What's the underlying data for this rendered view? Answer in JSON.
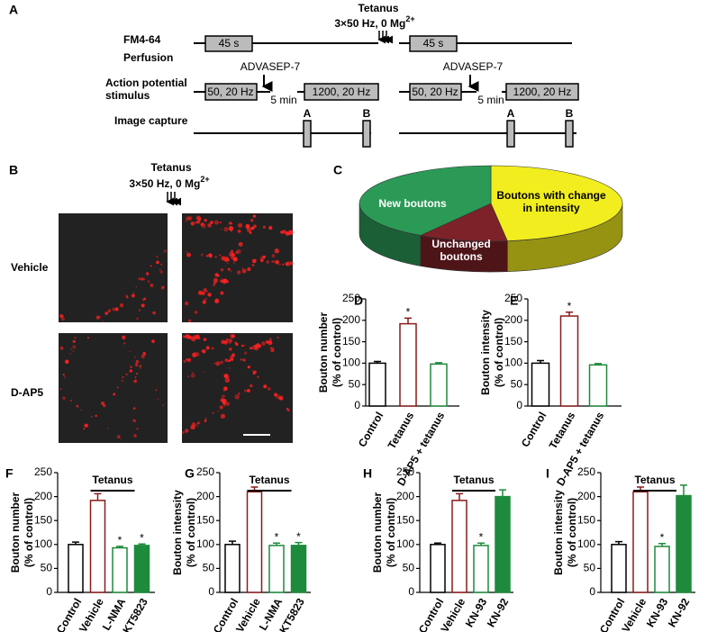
{
  "figure": {
    "panel_a": {
      "label": "A",
      "tetanus": "Tetanus",
      "tetanus_params": "3×50 Hz, 0 Mg",
      "tetanus_superscript": "2+",
      "row_labels": [
        "FM4-64",
        "Perfusion",
        "Action potential",
        "stimulus",
        "Image capture"
      ],
      "left": {
        "perfusion": "45 s",
        "drug": "ADVASEP-7",
        "stim_1": "50, 20 Hz",
        "interval": "5 min",
        "stim_2": "1200, 20 Hz",
        "capture_a": "A",
        "capture_b": "B"
      },
      "right": {
        "perfusion": "45 s",
        "drug": "ADVASEP-7",
        "stim_1": "50, 20 Hz",
        "interval": "5 min",
        "stim_2": "1200, 20 Hz",
        "capture_a": "A",
        "capture_b": "B"
      }
    },
    "panel_b": {
      "label": "B",
      "tetanus": "Tetanus",
      "tetanus_params": "3×50 Hz, 0 Mg",
      "tetanus_superscript": "2+",
      "rows": [
        "Vehicle",
        "D-AP5"
      ]
    }
  },
  "chart_data": [
    {
      "type": "pie",
      "panel": "C",
      "categories": [
        "Boutons with change in intensity",
        "Unchanged boutons",
        "New boutons"
      ],
      "values": [
        48,
        11,
        41
      ],
      "colors": [
        "#f2ed1e",
        "#7d2228",
        "#2b9a57"
      ]
    },
    {
      "type": "bar",
      "panel": "D",
      "ylabel": [
        "Bouton number",
        "(% of control)"
      ],
      "categories": [
        "Control",
        "Tetanus",
        "D-AP5 + tetanus"
      ],
      "values": [
        100,
        192,
        98
      ],
      "errors": [
        4,
        13,
        3
      ],
      "markers": [
        null,
        "*",
        null
      ],
      "colors": [
        "#000000",
        "#8b1a1a",
        "#1e8a3c"
      ],
      "filled": [
        false,
        false,
        false
      ],
      "ylim": [
        0,
        250
      ],
      "yticks": [
        0,
        50,
        100,
        150,
        200,
        250
      ]
    },
    {
      "type": "bar",
      "panel": "E",
      "ylabel": [
        "Bouton intensity",
        "(% of control)"
      ],
      "categories": [
        "Control",
        "Tetanus",
        "D-AP5 + tetanus"
      ],
      "values": [
        100,
        210,
        96
      ],
      "errors": [
        6,
        9,
        3
      ],
      "markers": [
        null,
        "*",
        null
      ],
      "colors": [
        "#000000",
        "#8b1a1a",
        "#1e8a3c"
      ],
      "filled": [
        false,
        false,
        false
      ],
      "ylim": [
        0,
        250
      ],
      "yticks": [
        0,
        50,
        100,
        150,
        200,
        250
      ]
    },
    {
      "type": "bar",
      "panel": "F",
      "ylabel": [
        "Bouton number",
        "(% of control)"
      ],
      "bracket_label": "Tetanus",
      "categories": [
        "Control",
        "Vehicle",
        "L-NMA",
        "KT5823"
      ],
      "values": [
        100,
        192,
        93,
        98
      ],
      "errors": [
        5,
        14,
        3,
        3
      ],
      "markers": [
        null,
        null,
        "*",
        "*"
      ],
      "colors": [
        "#000000",
        "#8b1a1a",
        "#1e8a3c",
        "#1e8a3c"
      ],
      "filled": [
        false,
        false,
        false,
        true
      ],
      "ylim": [
        0,
        250
      ],
      "yticks": [
        0,
        50,
        100,
        150,
        200,
        250
      ]
    },
    {
      "type": "bar",
      "panel": "G",
      "ylabel": [
        "Bouton intensity",
        "(% of control)"
      ],
      "bracket_label": "Tetanus",
      "categories": [
        "Control",
        "Vehicle",
        "L-NMA",
        "KT5823"
      ],
      "values": [
        100,
        210,
        98,
        98
      ],
      "errors": [
        7,
        10,
        5,
        6
      ],
      "markers": [
        null,
        null,
        "*",
        "*"
      ],
      "colors": [
        "#000000",
        "#8b1a1a",
        "#1e8a3c",
        "#1e8a3c"
      ],
      "filled": [
        false,
        false,
        false,
        true
      ],
      "ylim": [
        0,
        250
      ],
      "yticks": [
        0,
        50,
        100,
        150,
        200,
        250
      ]
    },
    {
      "type": "bar",
      "panel": "H",
      "ylabel": [
        "Bouton number",
        "(% of control)"
      ],
      "bracket_label": "Tetanus",
      "categories": [
        "Control",
        "Vehicle",
        "KN-93",
        "KN-92"
      ],
      "values": [
        100,
        192,
        98,
        200
      ],
      "errors": [
        3,
        14,
        5,
        14
      ],
      "markers": [
        null,
        null,
        "*",
        null
      ],
      "colors": [
        "#000000",
        "#8b1a1a",
        "#1e8a3c",
        "#1e8a3c"
      ],
      "filled": [
        false,
        false,
        false,
        true
      ],
      "ylim": [
        0,
        250
      ],
      "yticks": [
        0,
        50,
        100,
        150,
        200,
        250
      ]
    },
    {
      "type": "bar",
      "panel": "I",
      "ylabel": [
        "Bouton intensity",
        "(% of control)"
      ],
      "bracket_label": "Tetanus",
      "categories": [
        "Control",
        "Vehicle",
        "KN-93",
        "KN-92"
      ],
      "values": [
        100,
        210,
        96,
        202
      ],
      "errors": [
        6,
        10,
        6,
        22
      ],
      "markers": [
        null,
        null,
        "*",
        null
      ],
      "colors": [
        "#000000",
        "#8b1a1a",
        "#1e8a3c",
        "#1e8a3c"
      ],
      "filled": [
        false,
        false,
        false,
        true
      ],
      "ylim": [
        0,
        250
      ],
      "yticks": [
        0,
        50,
        100,
        150,
        200,
        250
      ]
    }
  ]
}
